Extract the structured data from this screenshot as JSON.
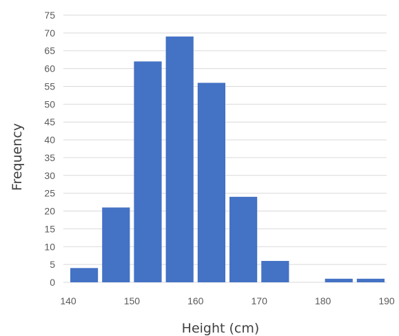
{
  "chart_data": {
    "type": "bar",
    "title": "",
    "xlabel": "Height (cm)",
    "ylabel": "Frequency",
    "x_ticks": [
      140,
      150,
      160,
      170,
      180,
      190
    ],
    "y_ticks": [
      0,
      5,
      10,
      15,
      20,
      25,
      30,
      35,
      40,
      45,
      50,
      55,
      60,
      65,
      70,
      75
    ],
    "xlim": [
      140,
      190
    ],
    "ylim": [
      0,
      75
    ],
    "bin_width": 5,
    "bins": [
      {
        "start": 140,
        "end": 145,
        "value": 4
      },
      {
        "start": 145,
        "end": 150,
        "value": 21
      },
      {
        "start": 150,
        "end": 155,
        "value": 62
      },
      {
        "start": 155,
        "end": 160,
        "value": 69
      },
      {
        "start": 160,
        "end": 165,
        "value": 56
      },
      {
        "start": 165,
        "end": 170,
        "value": 24
      },
      {
        "start": 170,
        "end": 175,
        "value": 6
      },
      {
        "start": 175,
        "end": 180,
        "value": 0
      },
      {
        "start": 180,
        "end": 185,
        "value": 1
      },
      {
        "start": 185,
        "end": 190,
        "value": 1
      }
    ],
    "bar_color": "#4472C4",
    "grid": true,
    "grid_color": "#D9D9D9",
    "legend": "none"
  }
}
